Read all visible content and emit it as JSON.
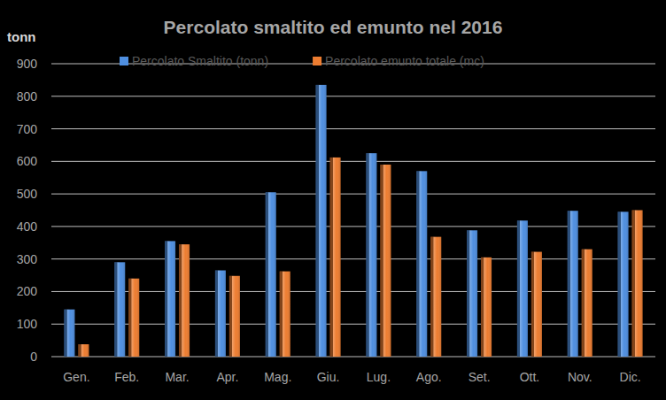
{
  "chart_data": {
    "type": "bar",
    "title": "Percolato smaltito ed emunto nel 2016",
    "y_label": "tonn",
    "categories": [
      "Gen.",
      "Feb.",
      "Mar.",
      "Apr.",
      "Mag.",
      "Giu.",
      "Lug.",
      "Ago.",
      "Set.",
      "Ott.",
      "Nov.",
      "Dic."
    ],
    "series": [
      {
        "name": "Percolato Smaltito (tonn)",
        "color": "#4f8fe0",
        "values": [
          145,
          290,
          355,
          265,
          505,
          835,
          625,
          570,
          388,
          418,
          448,
          445
        ]
      },
      {
        "name": "Percolato emunto totale (mc)",
        "color": "#ed7d31",
        "values": [
          38,
          240,
          345,
          248,
          262,
          612,
          590,
          368,
          305,
          322,
          330,
          450
        ]
      }
    ],
    "ylim": [
      0,
      900
    ],
    "yticks": [
      0,
      100,
      200,
      300,
      400,
      500,
      600,
      700,
      800,
      900
    ],
    "grid": true,
    "legend": "top"
  }
}
